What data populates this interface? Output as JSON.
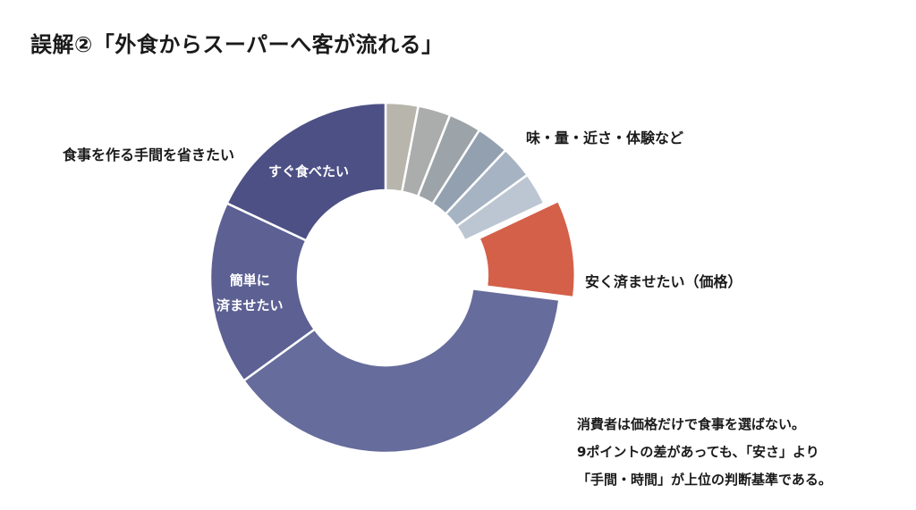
{
  "title": "誤解②「外食からスーパーへ客が流れる」",
  "callouts": {
    "save_effort": "食事を作る手間を省きたい",
    "misc": "味・量・近さ・体験など",
    "price": "安く済ませたい（価格）"
  },
  "inner_labels": {
    "quick": "すぐ食べたい",
    "easy_line1": "簡単に",
    "easy_line2": "済ませたい"
  },
  "note": {
    "line1": "消費者は価格だけで食事を選ばない。",
    "line2": "9ポイントの差があっても、「安さ」より",
    "line3": "「手間・時間」が上位の判断基準である。"
  },
  "chart_data": {
    "type": "pie",
    "variant": "donut",
    "title": "",
    "slices": [
      {
        "category": "味・量・近さ・体験など",
        "value": 3,
        "color": "#b8b5ad"
      },
      {
        "category": "味・量・近さ・体験など",
        "value": 3,
        "color": "#aaadab"
      },
      {
        "category": "味・量・近さ・体験など",
        "value": 3,
        "color": "#9da4a9"
      },
      {
        "category": "味・量・近さ・体験など",
        "value": 3,
        "color": "#93a0af"
      },
      {
        "category": "味・量・近さ・体験など",
        "value": 3,
        "color": "#a6b3c3"
      },
      {
        "category": "味・量・近さ・体験など",
        "value": 3,
        "color": "#bcc6d3"
      },
      {
        "category": "安く済ませたい（価格）",
        "value": 9,
        "color": "#d46049",
        "exploded": true
      },
      {
        "category": "食事を作る手間を省きたい",
        "value": 38,
        "color": "#666c9b"
      },
      {
        "category": "簡単に済ませたい",
        "value": 17,
        "color": "#5c6093"
      },
      {
        "category": "すぐ食べたい",
        "value": 18,
        "color": "#4d5085"
      }
    ]
  }
}
